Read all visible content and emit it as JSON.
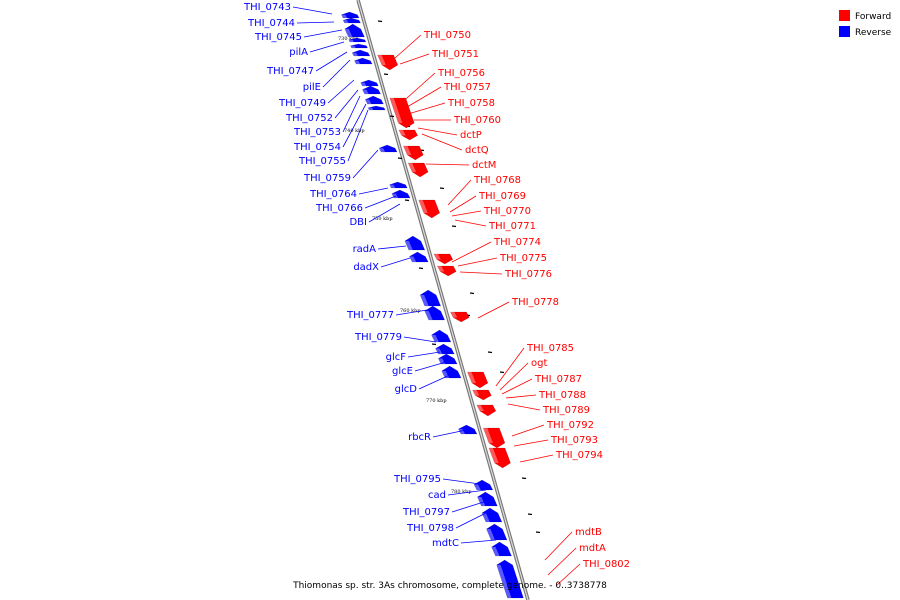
{
  "caption": "Thiomonas sp. str. 3As chromosome, complete genome. - 0..3738778",
  "legend": {
    "items": [
      {
        "name": "Forward",
        "color": "#ff0000"
      },
      {
        "name": "Reverse",
        "color": "#0000ff"
      }
    ]
  },
  "colors": {
    "forward": "#ff0000",
    "reverse": "#0000ff",
    "axis": "#888888"
  },
  "ticks": [
    "730 kbp",
    "740 kbp",
    "750 kbp",
    "760 kbp",
    "770 kbp",
    "780 kbp"
  ],
  "forward_genes": [
    "THI_0750",
    "THI_0751",
    "THI_0756",
    "THI_0757",
    "THI_0758",
    "THI_0760",
    "dctP",
    "dctQ",
    "dctM",
    "THI_0768",
    "THI_0769",
    "THI_0770",
    "THI_0771",
    "THI_0774",
    "THI_0775",
    "THI_0776",
    "THI_0778",
    "THI_0785",
    "ogt",
    "THI_0787",
    "THI_0788",
    "THI_0789",
    "THI_0792",
    "THI_0793",
    "THI_0794",
    "mdtB",
    "mdtA",
    "THI_0802"
  ],
  "reverse_genes": [
    "THI_0743",
    "THI_0744",
    "THI_0745",
    "pilA",
    "THI_0747",
    "pilE",
    "THI_0749",
    "THI_0752",
    "THI_0753",
    "THI_0754",
    "THI_0755",
    "THI_0759",
    "THI_0764",
    "THI_0766",
    "DBI",
    "radA",
    "dadX",
    "THI_0777",
    "THI_0779",
    "glcF",
    "glcE",
    "glcD",
    "rbcR",
    "THI_0795",
    "cad",
    "THI_0797",
    "THI_0798",
    "mdtC"
  ]
}
